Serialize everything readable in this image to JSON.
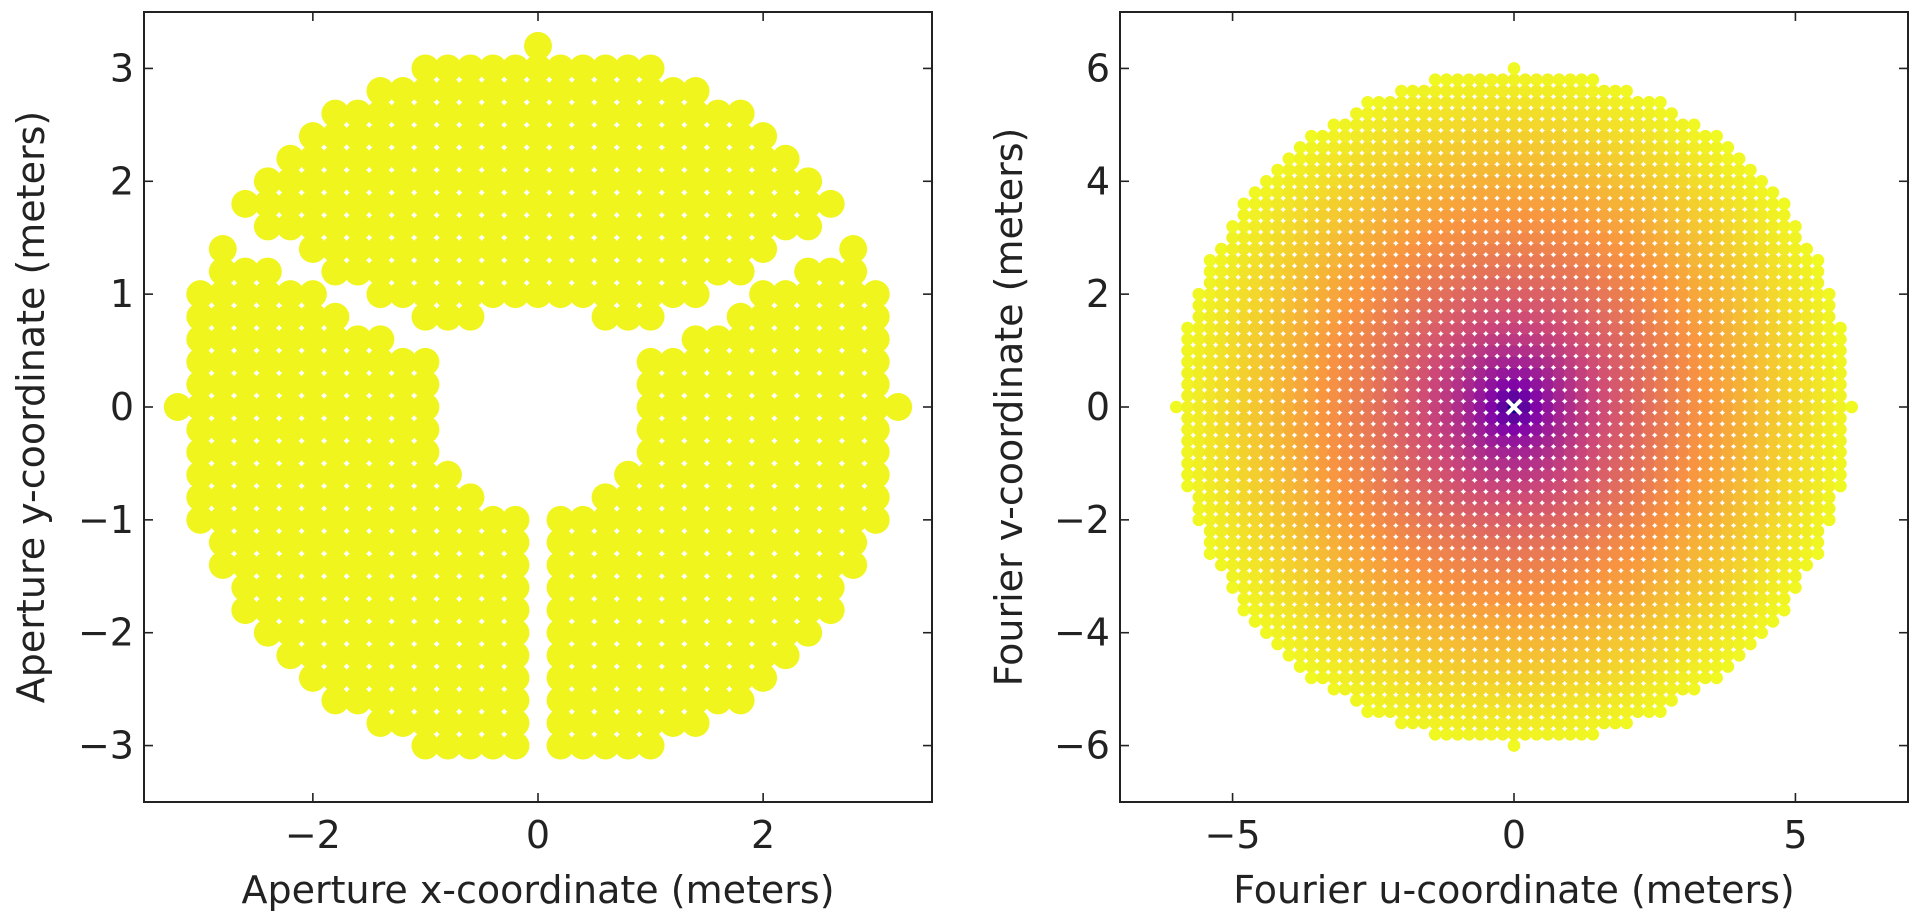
{
  "chart_data": [
    {
      "type": "scatter",
      "title": "",
      "xlabel": "Aperture x-coordinate (meters)",
      "ylabel": "Aperture y-coordinate (meters)",
      "xlim": [
        -3.5,
        3.5
      ],
      "ylim": [
        -3.5,
        3.5
      ],
      "xticks": [
        -2,
        0,
        2
      ],
      "yticks": [
        -3,
        -2,
        -1,
        0,
        1,
        2,
        3
      ],
      "xtick_labels": [
        "−2",
        "0",
        "2"
      ],
      "ytick_labels": [
        "−3",
        "−2",
        "−1",
        "0",
        "1",
        "2",
        "3"
      ],
      "grid": false,
      "point_color": "#f0f51e",
      "grid_spacing": 0.2,
      "boundary": {
        "outer_radius": 3.2,
        "central_obstruction_radius": 0.95,
        "spider_width": 0.2,
        "spider_angles_deg": [
          30,
          150,
          270
        ]
      }
    },
    {
      "type": "scatter",
      "title": "",
      "xlabel": "Fourier u-coordinate (meters)",
      "ylabel": "Fourier v-coordinate (meters)",
      "xlim": [
        -7,
        7
      ],
      "ylim": [
        -7,
        7
      ],
      "xticks": [
        -5,
        0,
        5
      ],
      "yticks": [
        -6,
        -4,
        -2,
        0,
        2,
        4,
        6
      ],
      "xtick_labels": [
        "−5",
        "0",
        "5"
      ],
      "ytick_labels": [
        "−6",
        "−4",
        "−2",
        "0",
        "2",
        "4",
        "6"
      ],
      "grid": false,
      "grid_spacing": 0.2,
      "max_baseline": 6.0,
      "colormap": [
        "#0d0887",
        "#7e03a8",
        "#cc4778",
        "#f89540",
        "#f0f921"
      ],
      "origin_marker_color": "#ffffff"
    }
  ]
}
